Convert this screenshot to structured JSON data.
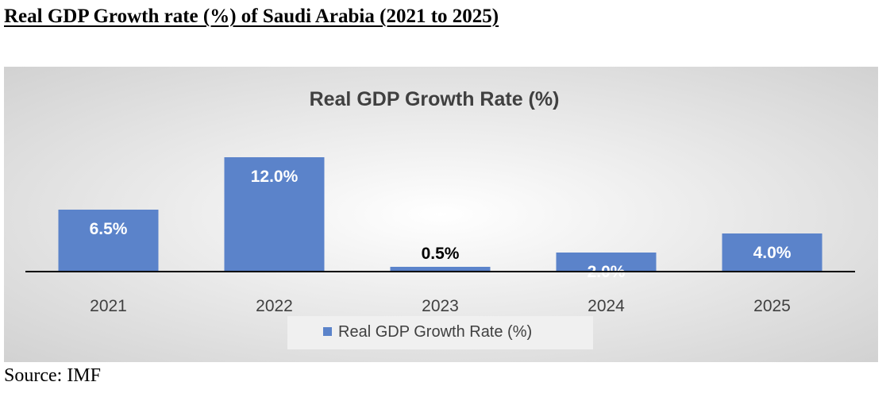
{
  "page": {
    "heading": "Real GDP Growth rate (%) of Saudi Arabia (2021 to 2025)",
    "source": "Source: IMF"
  },
  "colors": {
    "bar": "#5B83CA",
    "bar_label_light": "#FFFFFF",
    "bar_label_dark": "#000000",
    "axis": "#000000",
    "text": "#404040",
    "legend_background": "#F0F0F0"
  },
  "chart_data": {
    "type": "bar",
    "title": "Real GDP Growth Rate (%)",
    "xlabel": "",
    "ylabel": "",
    "categories": [
      "2021",
      "2022",
      "2023",
      "2024",
      "2025"
    ],
    "series": [
      {
        "name": "Real GDP Growth Rate (%)",
        "values": [
          6.5,
          12.0,
          0.5,
          2.0,
          4.0
        ],
        "labels": [
          "6.5%",
          "12.0%",
          "0.5%",
          "2.0%",
          "4.0%"
        ]
      }
    ],
    "ylim": [
      0,
      12.0
    ],
    "grid": false,
    "legend_position": "bottom"
  }
}
